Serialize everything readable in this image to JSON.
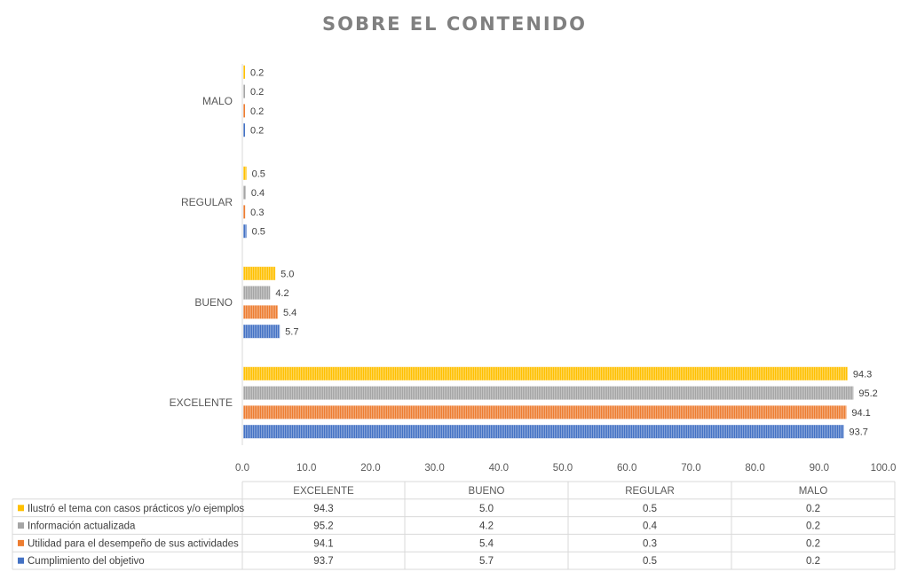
{
  "chart_data": {
    "type": "bar",
    "orientation": "horizontal",
    "title": "SOBRE EL CONTENIDO",
    "categories": [
      "EXCELENTE",
      "BUENO",
      "REGULAR",
      "MALO"
    ],
    "series": [
      {
        "name": "Cumplimiento del objetivo",
        "color": "#4472C4",
        "values": [
          93.7,
          5.7,
          0.5,
          0.2
        ],
        "labels": [
          "93.7",
          "5.7",
          "0.5",
          "0.2"
        ]
      },
      {
        "name": "Utilidad para el desempeño de sus actividades",
        "color": "#ED7D31",
        "values": [
          94.1,
          5.4,
          0.3,
          0.2
        ],
        "labels": [
          "94.1",
          "5.4",
          "0.3",
          "0.2"
        ]
      },
      {
        "name": "Información actualizada",
        "color": "#A5A5A5",
        "values": [
          95.2,
          4.2,
          0.4,
          0.2
        ],
        "labels": [
          "95.2",
          "4.2",
          "0.4",
          "0.2"
        ]
      },
      {
        "name": "Ilustró el tema con casos prácticos y/o ejemplos",
        "color": "#FFC000",
        "values": [
          94.3,
          5.0,
          0.5,
          0.2
        ],
        "labels": [
          "94.3",
          "5.0",
          "0.5",
          "0.2"
        ]
      }
    ],
    "xlim": [
      0,
      100
    ],
    "x_ticks": [
      "0.0",
      "10.0",
      "20.0",
      "30.0",
      "40.0",
      "50.0",
      "60.0",
      "70.0",
      "80.0",
      "90.0",
      "100.0"
    ],
    "grid": false,
    "legend": "data-table-bottom",
    "data_table": true
  }
}
